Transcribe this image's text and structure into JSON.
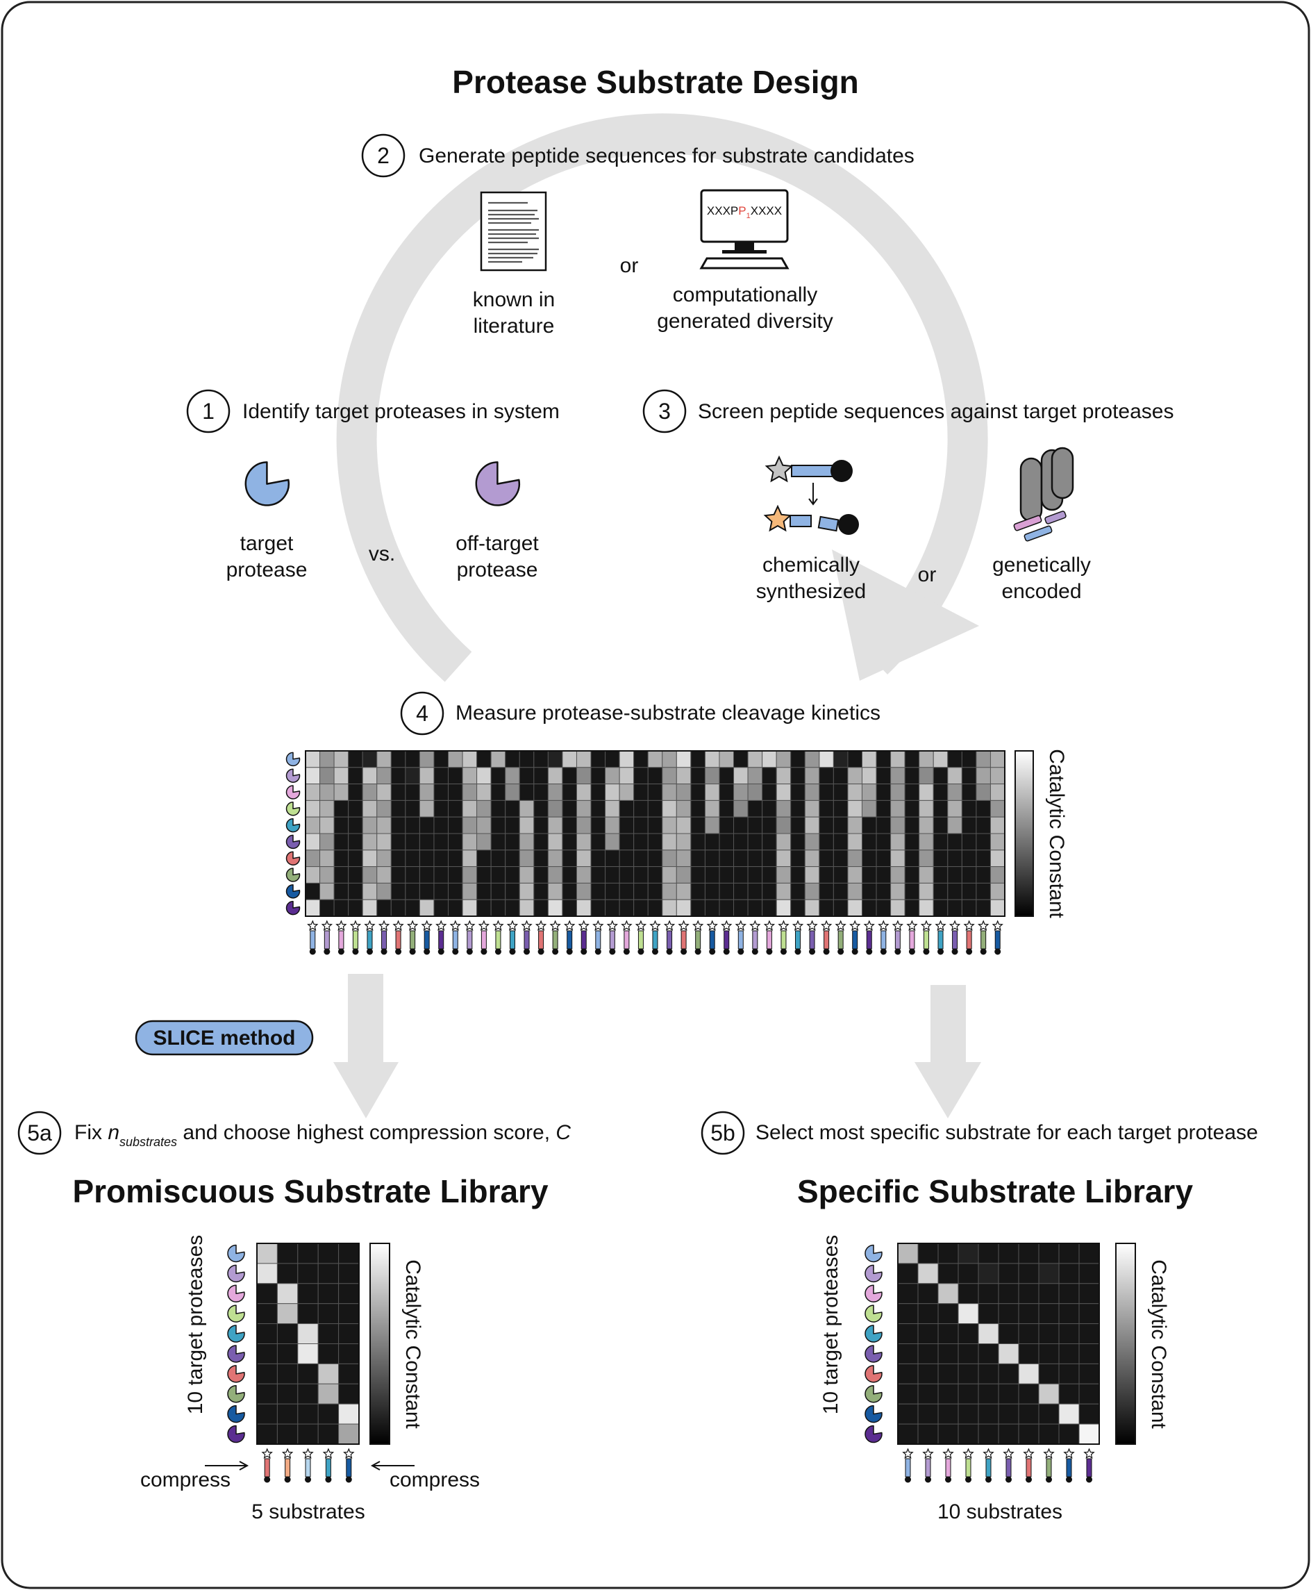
{
  "title": "Protease Substrate Design",
  "steps": {
    "s1": {
      "num": "1",
      "text": "Identify target proteases in system"
    },
    "s2": {
      "num": "2",
      "text": "Generate peptide sequences for substrate candidates"
    },
    "s3": {
      "num": "3",
      "text": "Screen peptide sequences against target proteases"
    },
    "s4": {
      "num": "4",
      "text": "Measure protease-substrate cleavage kinetics"
    },
    "s5a": {
      "num": "5a",
      "pre": "Fix ",
      "n": "n",
      "sub": "substrates",
      "post": " and choose highest compression score, ",
      "c": "C"
    },
    "s5b": {
      "num": "5b",
      "text": "Select most specific substrate for each target protease"
    }
  },
  "labels": {
    "or": "or",
    "vs": "vs.",
    "known_1": "known in",
    "known_2": "literature",
    "comp_1": "computationally",
    "comp_2": "generated diversity",
    "target_1": "target",
    "target_2": "protease",
    "off_1": "off-target",
    "off_2": "protease",
    "chem_1": "chemically",
    "chem_2": "synthesized",
    "gen_1": "genetically",
    "gen_2": "encoded",
    "seq_pre": "XXXP",
    "seq_p": "1",
    "seq_post": "XXXX",
    "slice": "SLICE method",
    "cbar": "Catalytic Constant",
    "promiscuous": "Promiscuous Substrate Library",
    "specific": "Specific Substrate Library",
    "ylabel": "10 target proteases",
    "compress": "compress",
    "five_sub": "5 substrates",
    "ten_sub": "10 substrates"
  },
  "colors": {
    "target": "#8fb3e3",
    "offtarget": "#b39bd1",
    "arrow": "#e1e1e1",
    "slice_fill": "#8fb3e3",
    "seq_red": "#e0463c",
    "star_orange": "#f5b87a",
    "star_grey": "#c4c4c4",
    "peptide": "#8fb3e3",
    "pink": "#d9a0d4",
    "blue_peptide": "#8fb3e3",
    "display": "#8a8a8a",
    "protease_palette": [
      "#8fb3e3",
      "#b39bd1",
      "#e4a8dc",
      "#bfe092",
      "#3fa3c4",
      "#7a5eaf",
      "#e07474",
      "#93af7a",
      "#175aa1",
      "#5b2d91"
    ],
    "promisc_substrates": [
      "#e07474",
      "#f2aa84",
      "#b6d6ee",
      "#3fa3c4",
      "#175aa1"
    ]
  },
  "heatmap_main": {
    "rows": 10,
    "cols": 49,
    "values": [
      [
        0.85,
        0.6,
        0.75,
        0.05,
        0.1,
        0.7,
        0.05,
        0.05,
        0.6,
        0.05,
        0.65,
        0.8,
        0.05,
        0.7,
        0.05,
        0.05,
        0.05,
        0.1,
        0.8,
        0.75,
        0.05,
        0.05,
        0.85,
        0.05,
        0.7,
        0.65,
        0.9,
        0.05,
        0.8,
        0.7,
        0.05,
        0.75,
        0.85,
        0.65,
        0.05,
        0.6,
        0.9,
        0.1,
        0.05,
        0.8,
        0.05,
        0.75,
        0.05,
        0.7,
        0.8,
        0.05,
        0.05,
        0.6,
        0.7
      ],
      [
        0.9,
        0.55,
        0.8,
        0.05,
        0.8,
        0.6,
        0.05,
        0.1,
        0.75,
        0.05,
        0.05,
        0.7,
        0.85,
        0.05,
        0.6,
        0.05,
        0.05,
        0.75,
        0.05,
        0.55,
        0.05,
        0.65,
        0.8,
        0.05,
        0.05,
        0.6,
        0.75,
        0.05,
        0.55,
        0.05,
        0.8,
        0.6,
        0.05,
        0.75,
        0.05,
        0.65,
        0.05,
        0.05,
        0.7,
        0.8,
        0.05,
        0.6,
        0.05,
        0.55,
        0.05,
        0.75,
        0.05,
        0.65,
        0.7
      ],
      [
        0.75,
        0.65,
        0.7,
        0.05,
        0.6,
        0.75,
        0.05,
        0.05,
        0.65,
        0.05,
        0.05,
        0.6,
        0.75,
        0.05,
        0.55,
        0.05,
        0.05,
        0.6,
        0.05,
        0.75,
        0.05,
        0.8,
        0.7,
        0.05,
        0.05,
        0.65,
        0.6,
        0.05,
        0.75,
        0.05,
        0.6,
        0.55,
        0.05,
        0.8,
        0.05,
        0.6,
        0.05,
        0.05,
        0.75,
        0.65,
        0.05,
        0.6,
        0.05,
        0.8,
        0.05,
        0.6,
        0.05,
        0.55,
        0.75
      ],
      [
        0.8,
        0.7,
        0.05,
        0.05,
        0.75,
        0.6,
        0.05,
        0.05,
        0.7,
        0.05,
        0.05,
        0.75,
        0.6,
        0.05,
        0.05,
        0.7,
        0.05,
        0.55,
        0.05,
        0.65,
        0.05,
        0.75,
        0.05,
        0.05,
        0.05,
        0.8,
        0.65,
        0.05,
        0.7,
        0.05,
        0.55,
        0.05,
        0.05,
        0.6,
        0.05,
        0.7,
        0.05,
        0.05,
        0.8,
        0.6,
        0.05,
        0.65,
        0.05,
        0.75,
        0.05,
        0.7,
        0.05,
        0.05,
        0.6
      ],
      [
        0.7,
        0.75,
        0.05,
        0.05,
        0.65,
        0.7,
        0.05,
        0.05,
        0.05,
        0.05,
        0.05,
        0.6,
        0.65,
        0.05,
        0.05,
        0.75,
        0.05,
        0.7,
        0.05,
        0.6,
        0.05,
        0.65,
        0.05,
        0.05,
        0.05,
        0.7,
        0.75,
        0.05,
        0.6,
        0.05,
        0.05,
        0.05,
        0.05,
        0.55,
        0.05,
        0.75,
        0.05,
        0.05,
        0.7,
        0.05,
        0.05,
        0.6,
        0.05,
        0.7,
        0.05,
        0.65,
        0.05,
        0.05,
        0.75
      ],
      [
        0.85,
        0.6,
        0.05,
        0.05,
        0.7,
        0.75,
        0.05,
        0.05,
        0.05,
        0.05,
        0.05,
        0.7,
        0.6,
        0.05,
        0.05,
        0.65,
        0.05,
        0.75,
        0.05,
        0.7,
        0.05,
        0.6,
        0.05,
        0.05,
        0.05,
        0.75,
        0.7,
        0.05,
        0.05,
        0.05,
        0.05,
        0.05,
        0.05,
        0.7,
        0.05,
        0.6,
        0.05,
        0.05,
        0.75,
        0.05,
        0.05,
        0.7,
        0.05,
        0.65,
        0.05,
        0.05,
        0.05,
        0.05,
        0.7
      ],
      [
        0.6,
        0.7,
        0.05,
        0.05,
        0.8,
        0.65,
        0.05,
        0.05,
        0.05,
        0.05,
        0.05,
        0.75,
        0.05,
        0.05,
        0.05,
        0.6,
        0.05,
        0.65,
        0.05,
        0.75,
        0.05,
        0.05,
        0.05,
        0.05,
        0.05,
        0.6,
        0.65,
        0.05,
        0.05,
        0.05,
        0.05,
        0.05,
        0.05,
        0.75,
        0.05,
        0.7,
        0.05,
        0.05,
        0.6,
        0.05,
        0.05,
        0.75,
        0.05,
        0.6,
        0.05,
        0.05,
        0.05,
        0.05,
        0.8
      ],
      [
        0.75,
        0.65,
        0.05,
        0.05,
        0.6,
        0.7,
        0.05,
        0.05,
        0.05,
        0.05,
        0.05,
        0.6,
        0.05,
        0.05,
        0.05,
        0.7,
        0.05,
        0.6,
        0.05,
        0.65,
        0.05,
        0.05,
        0.05,
        0.05,
        0.05,
        0.7,
        0.6,
        0.05,
        0.05,
        0.05,
        0.05,
        0.05,
        0.05,
        0.65,
        0.05,
        0.75,
        0.05,
        0.05,
        0.7,
        0.05,
        0.05,
        0.65,
        0.05,
        0.7,
        0.05,
        0.05,
        0.05,
        0.05,
        0.6
      ],
      [
        0.05,
        0.7,
        0.05,
        0.05,
        0.75,
        0.6,
        0.05,
        0.05,
        0.05,
        0.05,
        0.05,
        0.65,
        0.05,
        0.05,
        0.05,
        0.75,
        0.05,
        0.7,
        0.05,
        0.6,
        0.05,
        0.05,
        0.05,
        0.05,
        0.05,
        0.65,
        0.7,
        0.05,
        0.05,
        0.05,
        0.05,
        0.05,
        0.05,
        0.7,
        0.05,
        0.6,
        0.05,
        0.05,
        0.65,
        0.05,
        0.05,
        0.7,
        0.05,
        0.75,
        0.05,
        0.05,
        0.05,
        0.05,
        0.7
      ],
      [
        0.9,
        0.05,
        0.05,
        0.05,
        0.85,
        0.05,
        0.05,
        0.05,
        0.8,
        0.05,
        0.05,
        0.85,
        0.05,
        0.05,
        0.05,
        0.8,
        0.05,
        0.9,
        0.05,
        0.85,
        0.05,
        0.05,
        0.05,
        0.05,
        0.05,
        0.8,
        0.85,
        0.05,
        0.05,
        0.05,
        0.05,
        0.05,
        0.05,
        0.9,
        0.05,
        0.8,
        0.05,
        0.05,
        0.85,
        0.05,
        0.05,
        0.8,
        0.05,
        0.85,
        0.05,
        0.05,
        0.05,
        0.05,
        0.85
      ]
    ]
  },
  "heatmap_promiscuous": {
    "rows": 10,
    "cols": 5,
    "values": [
      [
        0.82,
        0.05,
        0.05,
        0.05,
        0.05
      ],
      [
        0.92,
        0.05,
        0.05,
        0.05,
        0.05
      ],
      [
        0.05,
        0.88,
        0.05,
        0.05,
        0.05
      ],
      [
        0.05,
        0.78,
        0.05,
        0.05,
        0.05
      ],
      [
        0.05,
        0.05,
        0.9,
        0.05,
        0.05
      ],
      [
        0.05,
        0.05,
        0.95,
        0.05,
        0.05
      ],
      [
        0.05,
        0.05,
        0.05,
        0.8,
        0.05
      ],
      [
        0.05,
        0.05,
        0.05,
        0.72,
        0.05
      ],
      [
        0.05,
        0.05,
        0.05,
        0.05,
        0.95
      ],
      [
        0.05,
        0.05,
        0.05,
        0.05,
        0.66
      ]
    ]
  },
  "heatmap_specific": {
    "rows": 10,
    "cols": 10,
    "values": [
      [
        0.75,
        0.05,
        0.05,
        0.1,
        0.05,
        0.05,
        0.05,
        0.05,
        0.05,
        0.05
      ],
      [
        0.05,
        0.85,
        0.05,
        0.05,
        0.1,
        0.05,
        0.05,
        0.1,
        0.05,
        0.05
      ],
      [
        0.05,
        0.05,
        0.8,
        0.05,
        0.05,
        0.05,
        0.05,
        0.05,
        0.05,
        0.05
      ],
      [
        0.05,
        0.05,
        0.05,
        0.95,
        0.05,
        0.05,
        0.05,
        0.05,
        0.05,
        0.05
      ],
      [
        0.05,
        0.05,
        0.05,
        0.05,
        0.9,
        0.05,
        0.05,
        0.05,
        0.05,
        0.05
      ],
      [
        0.05,
        0.05,
        0.05,
        0.05,
        0.05,
        0.88,
        0.05,
        0.05,
        0.05,
        0.05
      ],
      [
        0.05,
        0.05,
        0.05,
        0.05,
        0.05,
        0.05,
        0.92,
        0.05,
        0.05,
        0.05
      ],
      [
        0.05,
        0.05,
        0.05,
        0.05,
        0.05,
        0.05,
        0.05,
        0.82,
        0.05,
        0.05
      ],
      [
        0.05,
        0.05,
        0.05,
        0.05,
        0.05,
        0.05,
        0.05,
        0.05,
        0.95,
        0.05
      ],
      [
        0.05,
        0.05,
        0.05,
        0.05,
        0.05,
        0.05,
        0.05,
        0.05,
        0.05,
        1.0
      ]
    ]
  }
}
